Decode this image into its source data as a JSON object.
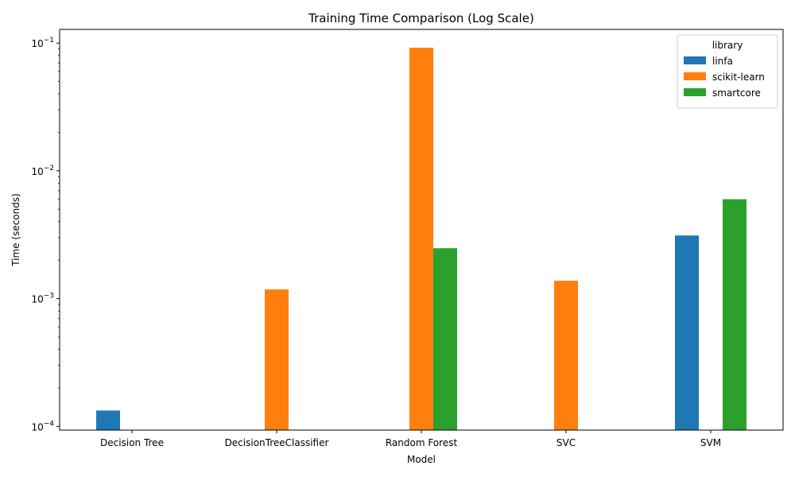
{
  "chart_data": {
    "type": "bar",
    "title": "Training Time Comparison (Log Scale)",
    "xlabel": "Model",
    "ylabel": "Time (seconds)",
    "y_scale": "log",
    "ylim": [
      9.35e-05,
      0.128
    ],
    "y_ticks": [
      {
        "value": 0.0001,
        "base": "10",
        "exp": "−4"
      },
      {
        "value": 0.001,
        "base": "10",
        "exp": "−3"
      },
      {
        "value": 0.01,
        "base": "10",
        "exp": "−2"
      },
      {
        "value": 0.1,
        "base": "10",
        "exp": "−1"
      }
    ],
    "categories": [
      "Decision Tree",
      "DecisionTreeClassifier",
      "Random Forest",
      "SVC",
      "SVM"
    ],
    "series": [
      {
        "name": "linfa",
        "color": "#1f77b4",
        "values": [
          0.000133,
          null,
          null,
          null,
          0.00312
        ]
      },
      {
        "name": "scikit-learn",
        "color": "#ff7f0e",
        "values": [
          null,
          0.00118,
          0.092,
          0.00138,
          null
        ]
      },
      {
        "name": "smartcore",
        "color": "#2ca02c",
        "values": [
          null,
          null,
          0.00248,
          null,
          0.006
        ]
      }
    ],
    "legend": {
      "title": "library",
      "position": "top-right"
    },
    "grid": false
  }
}
